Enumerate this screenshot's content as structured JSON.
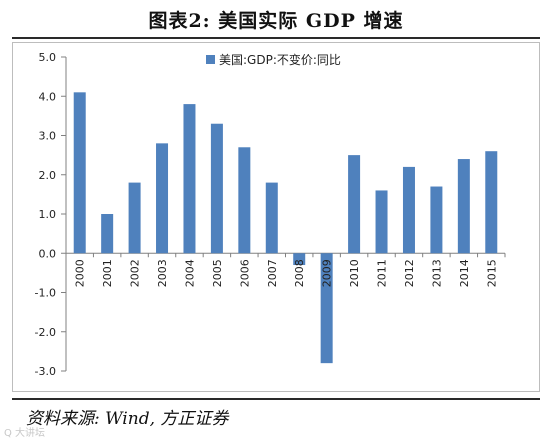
{
  "figure": {
    "title": "图表2:   美国实际 GDP 增速",
    "source": "资料来源: Wind,  方正证券",
    "watermark": "Q 大讲坛"
  },
  "chart_data": {
    "type": "bar",
    "categories": [
      "2000",
      "2001",
      "2002",
      "2003",
      "2004",
      "2005",
      "2006",
      "2007",
      "2008",
      "2009",
      "2010",
      "2011",
      "2012",
      "2013",
      "2014",
      "2015"
    ],
    "series": [
      {
        "name": "美国:GDP:不变价:同比",
        "values": [
          4.1,
          1.0,
          1.8,
          2.8,
          3.8,
          3.3,
          2.7,
          1.8,
          -0.3,
          -2.8,
          2.5,
          1.6,
          2.2,
          1.7,
          2.4,
          2.6
        ]
      }
    ],
    "ylim": [
      -3.0,
      5.0
    ],
    "yticks": [
      "5.0",
      "4.0",
      "3.0",
      "2.0",
      "1.0",
      "0.0",
      "-1.0",
      "-2.0",
      "-3.0"
    ],
    "ytick_values": [
      5,
      4,
      3,
      2,
      1,
      0,
      -1,
      -2,
      -3
    ],
    "color": "#4f81bd",
    "legend": "top",
    "grid": false,
    "xlabel": "",
    "ylabel": ""
  }
}
